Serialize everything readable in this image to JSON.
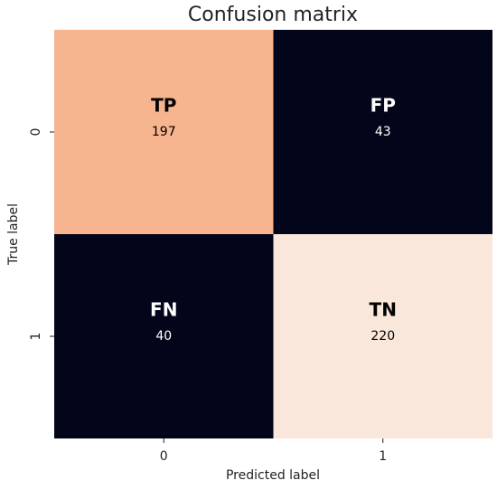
{
  "chart_data": {
    "type": "heatmap",
    "title": "Confusion matrix",
    "x_label": "Predicted label",
    "y_label": "True label",
    "x_categories": [
      "0",
      "1"
    ],
    "y_categories": [
      "0",
      "1"
    ],
    "values": [
      [
        197,
        43
      ],
      [
        40,
        220
      ]
    ],
    "cell_labels": [
      [
        "TP",
        "FP"
      ],
      [
        "FN",
        "TN"
      ]
    ],
    "colors": [
      [
        "#f6b48f",
        "#03051a"
      ],
      [
        "#03051a",
        "#fae7dc"
      ]
    ],
    "cell_text_colors": [
      [
        "#000000",
        "#ffffff"
      ],
      [
        "#ffffff",
        "#000000"
      ]
    ]
  }
}
